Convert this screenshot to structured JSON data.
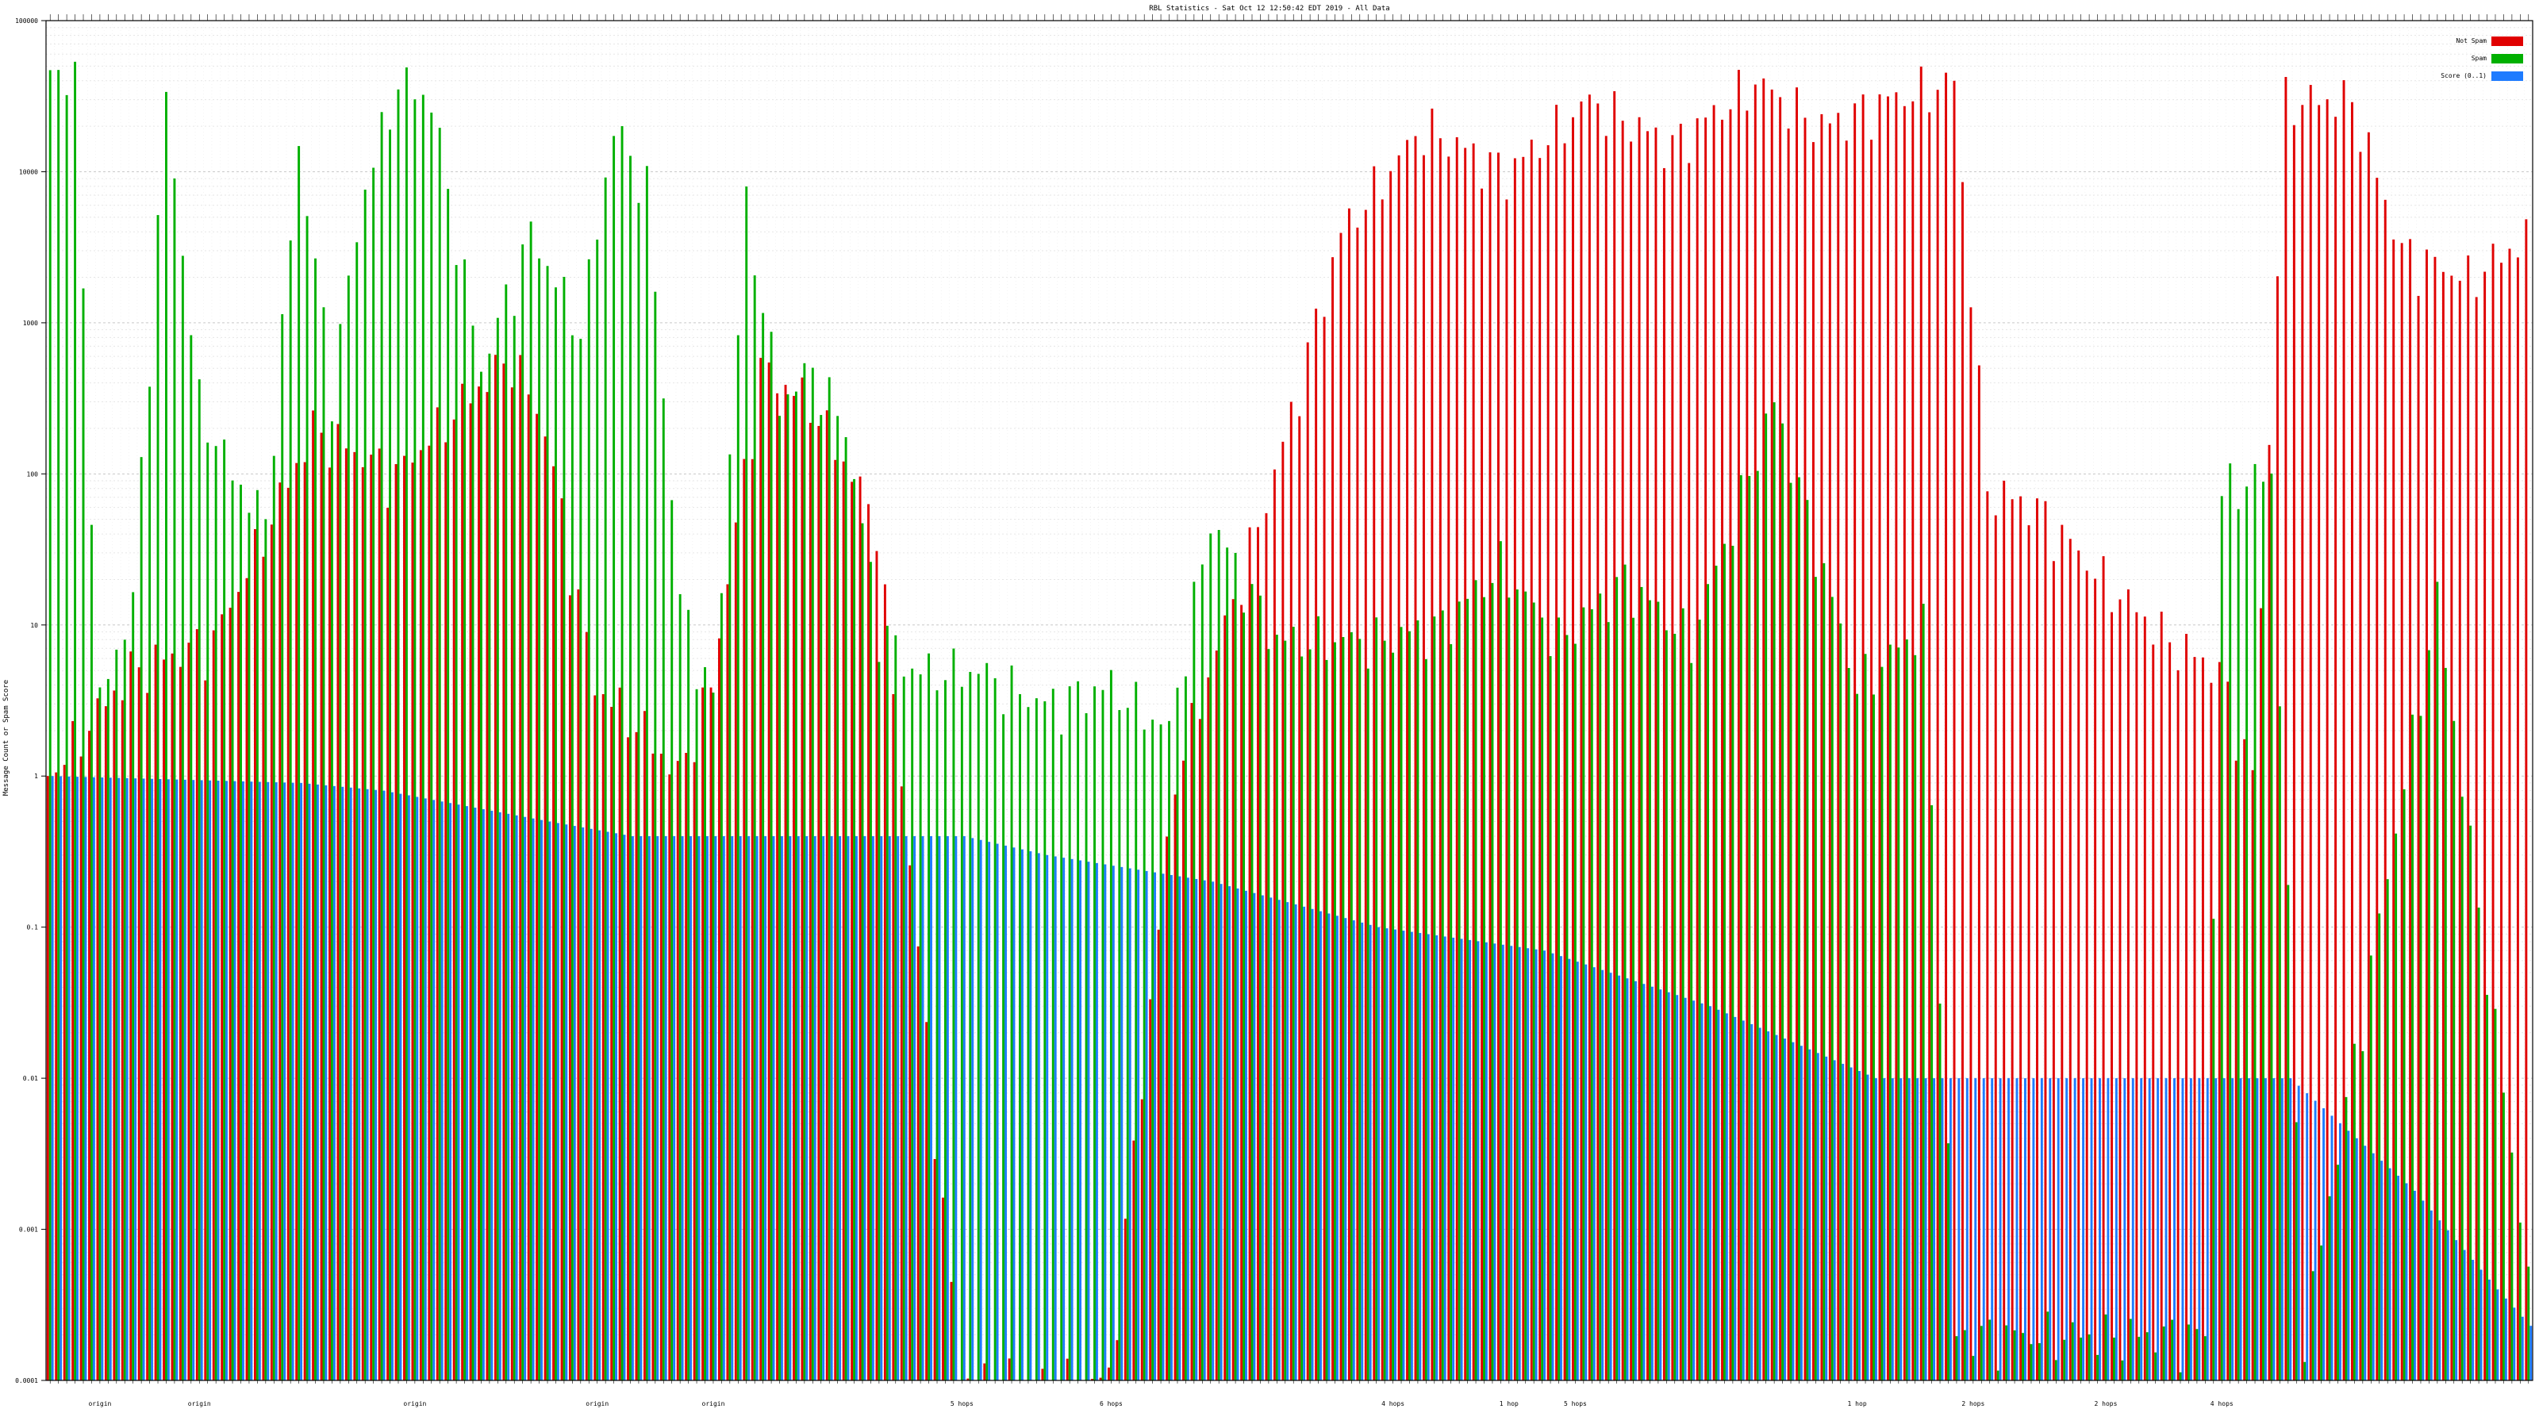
{
  "chart_data": {
    "type": "bar",
    "title": "RBL Statistics - Sat Oct 12 12:50:42 EDT 2019 - All Data",
    "ylabel": "Message Count or Spam Score",
    "xlabel": "",
    "yscale": "log",
    "ylim": [
      0.0001,
      100000
    ],
    "y_ticks": [
      0.0001,
      0.001,
      0.01,
      0.1,
      1,
      10,
      100,
      1000,
      10000,
      100000
    ],
    "y_tick_labels": [
      "0.0001",
      "0.001",
      "0.01",
      "0.1",
      "1",
      "10",
      "100",
      "1000",
      "10000",
      "100000"
    ],
    "grid": true,
    "legend_position": "top-right",
    "series": [
      {
        "name": "Not Spam",
        "color": "#e00000"
      },
      {
        "name": "Spam",
        "color": "#00b000"
      },
      {
        "name": "Score (0..1)",
        "color": "#1e7bff"
      }
    ],
    "category_count": 300,
    "visible_x_labels": [
      "origin",
      "origin",
      "origin",
      "origin",
      "origin",
      "5 hops",
      "6 hops",
      "4 hops",
      "1 hop",
      "5 hops",
      "1 hop",
      "2 hops",
      "2 hops",
      "4 hops"
    ],
    "series_profile": {
      "spam_anchors": [
        [
          0,
          50000
        ],
        [
          3,
          40000
        ],
        [
          6,
          3
        ],
        [
          10,
          15
        ],
        [
          14,
          30000
        ],
        [
          18,
          300
        ],
        [
          22,
          100
        ],
        [
          26,
          50
        ],
        [
          30,
          15000
        ],
        [
          34,
          400
        ],
        [
          38,
          8000
        ],
        [
          42,
          40000
        ],
        [
          46,
          30000
        ],
        [
          52,
          500
        ],
        [
          58,
          4000
        ],
        [
          64,
          900
        ],
        [
          68,
          20000
        ],
        [
          72,
          8000
        ],
        [
          76,
          15
        ],
        [
          80,
          3
        ],
        [
          84,
          6000
        ],
        [
          88,
          300
        ],
        [
          92,
          500
        ],
        [
          96,
          200
        ],
        [
          100,
          10
        ],
        [
          104,
          5
        ],
        [
          112,
          5
        ],
        [
          120,
          3
        ],
        [
          128,
          4
        ],
        [
          135,
          2
        ],
        [
          140,
          50
        ],
        [
          148,
          8
        ],
        [
          160,
          8
        ],
        [
          168,
          10
        ],
        [
          175,
          25
        ],
        [
          182,
          8
        ],
        [
          190,
          20
        ],
        [
          198,
          8
        ],
        [
          208,
          300
        ],
        [
          218,
          4
        ],
        [
          226,
          10
        ],
        [
          230,
          0.0002
        ],
        [
          260,
          0.0002
        ],
        [
          262,
          80
        ],
        [
          268,
          100
        ],
        [
          272,
          0.0002
        ],
        [
          288,
          15
        ],
        [
          300,
          0.0002
        ]
      ],
      "notspam_anchors": [
        [
          0,
          1
        ],
        [
          10,
          5
        ],
        [
          20,
          8
        ],
        [
          32,
          200
        ],
        [
          42,
          100
        ],
        [
          50,
          300
        ],
        [
          56,
          600
        ],
        [
          60,
          200
        ],
        [
          66,
          4
        ],
        [
          72,
          2
        ],
        [
          76,
          1
        ],
        [
          80,
          4
        ],
        [
          86,
          500
        ],
        [
          92,
          300
        ],
        [
          100,
          50
        ],
        [
          110,
          0.0001
        ],
        [
          128,
          0.0001
        ],
        [
          136,
          1
        ],
        [
          148,
          100
        ],
        [
          156,
          4000
        ],
        [
          166,
          20000
        ],
        [
          176,
          10000
        ],
        [
          186,
          30000
        ],
        [
          196,
          15000
        ],
        [
          206,
          40000
        ],
        [
          214,
          20000
        ],
        [
          222,
          30000
        ],
        [
          230,
          40000
        ],
        [
          234,
          80
        ],
        [
          240,
          60
        ],
        [
          248,
          20
        ],
        [
          256,
          8
        ],
        [
          262,
          5
        ],
        [
          266,
          1
        ],
        [
          270,
          30000
        ],
        [
          278,
          30000
        ],
        [
          284,
          3000
        ],
        [
          292,
          2000
        ],
        [
          300,
          4000
        ]
      ],
      "score_anchors": [
        [
          0,
          1
        ],
        [
          30,
          0.9
        ],
        [
          40,
          0.8
        ],
        [
          60,
          0.5
        ],
        [
          70,
          0.4
        ],
        [
          95,
          0.4
        ],
        [
          110,
          0.4
        ],
        [
          120,
          0.3
        ],
        [
          140,
          0.2
        ],
        [
          160,
          0.1
        ],
        [
          180,
          0.07
        ],
        [
          200,
          0.03
        ],
        [
          220,
          0.01
        ],
        [
          230,
          0.01
        ],
        [
          270,
          0.01
        ],
        [
          285,
          0.0018
        ],
        [
          295,
          0.0004
        ],
        [
          300,
          0.0002
        ]
      ]
    }
  }
}
